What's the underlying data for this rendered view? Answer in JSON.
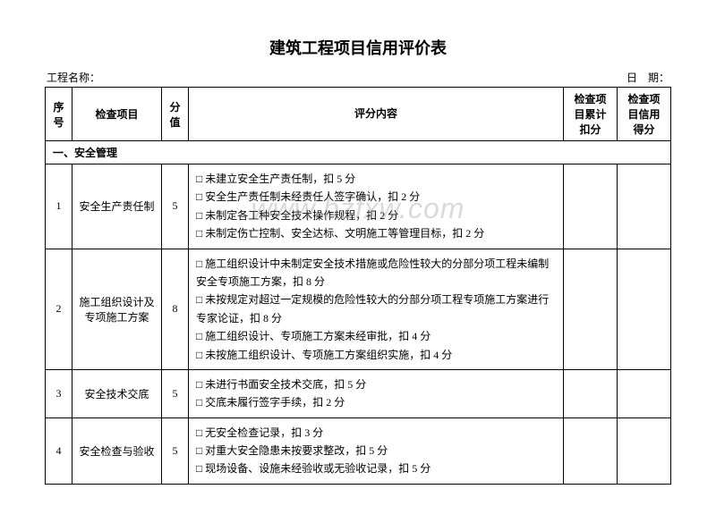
{
  "title": "建筑工程项目信用评价表",
  "header_left": "工程名称：",
  "header_right": "日　期：",
  "watermark": "www.bzfxw.com",
  "columns": {
    "seq": "序号",
    "item": "检查项目",
    "score": "分值",
    "content": "评分内容",
    "deduct": "检查项目累计扣分",
    "credit": "检查项目信用得分"
  },
  "section1_title": "一、安全管理",
  "rows": [
    {
      "seq": "1",
      "item": "安全生产责任制",
      "score": "5",
      "lines": [
        "□ 未建立安全生产责任制，扣 5 分",
        "□ 安全生产责任制未经责任人签字确认，扣 2 分",
        "□ 未制定各工种安全技术操作规程，扣 2 分",
        "□ 未制定伤亡控制、安全达标、文明施工等管理目标，扣 2 分"
      ]
    },
    {
      "seq": "2",
      "item": "施工组织设计及专项施工方案",
      "score": "8",
      "lines": [
        "□ 施工组织设计中未制定安全技术措施或危险性较大的分部分项工程未编制安全专项施工方案，扣 8 分",
        "□ 未按规定对超过一定规模的危险性较大的分部分项工程专项施工方案进行专家论证，扣 8 分",
        "□ 施工组织设计、专项施工方案未经审批，扣 4 分",
        "□ 未按施工组织设计、专项施工方案组织实施，扣 4 分"
      ]
    },
    {
      "seq": "3",
      "item": "安全技术交底",
      "score": "5",
      "lines": [
        "□ 未进行书面安全技术交底，扣 5 分",
        "□ 交底未履行签字手续，扣 2 分"
      ]
    },
    {
      "seq": "4",
      "item": "安全检查与验收",
      "score": "5",
      "lines": [
        "□ 无安全检查记录，扣 3 分",
        "□ 对重大安全隐患未按要求整改，扣 5 分",
        "□ 现场设备、设施未经验收或无验收记录，扣 5 分"
      ]
    }
  ]
}
